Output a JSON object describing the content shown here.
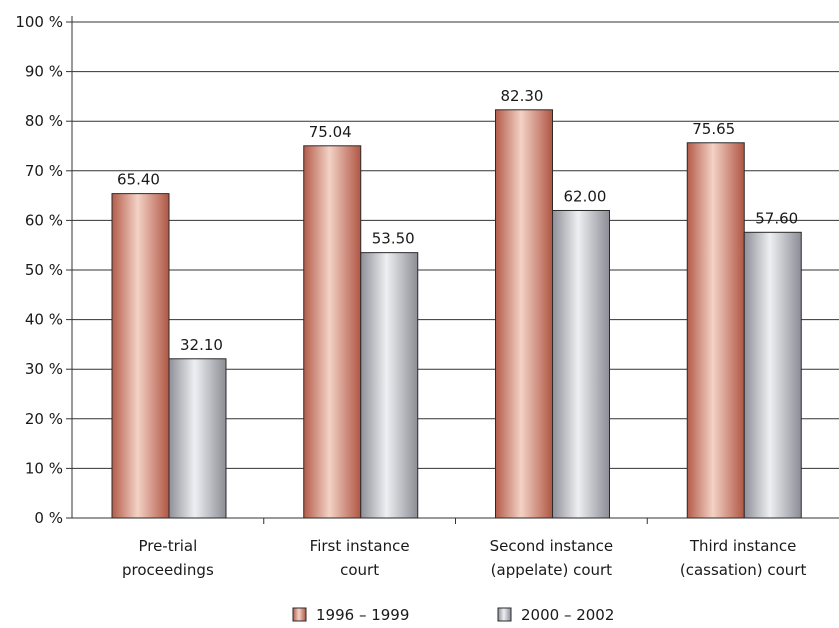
{
  "chart_data": {
    "type": "bar",
    "categories": [
      [
        "Pre-trial",
        "proceedings"
      ],
      [
        "First instance",
        "court"
      ],
      [
        "Second instance",
        "(appelate) court"
      ],
      [
        "Third instance",
        "(cassation) court"
      ]
    ],
    "series": [
      {
        "name": "1996 – 1999",
        "values": [
          65.4,
          75.04,
          82.3,
          75.65
        ],
        "labels": [
          "65.40",
          "75.04",
          "82.30",
          "75.65"
        ],
        "color": "#c86f5c"
      },
      {
        "name": "2000 – 2002",
        "values": [
          32.1,
          53.5,
          62.0,
          57.6
        ],
        "labels": [
          "32.10",
          "53.50",
          "62.00",
          "57.60"
        ],
        "color": "#a9aab2"
      }
    ],
    "ylim": [
      0,
      100
    ],
    "yticks": [
      "0 %",
      "10 %",
      "20 %",
      "30 %",
      "40 %",
      "50 %",
      "60 %",
      "70 %",
      "80 %",
      "90 %",
      "100 %"
    ],
    "ytick_values": [
      0,
      10,
      20,
      30,
      40,
      50,
      60,
      70,
      80,
      90,
      100
    ],
    "grid": true,
    "legend_position": "bottom-center",
    "title": "",
    "xlabel": "",
    "ylabel": ""
  }
}
